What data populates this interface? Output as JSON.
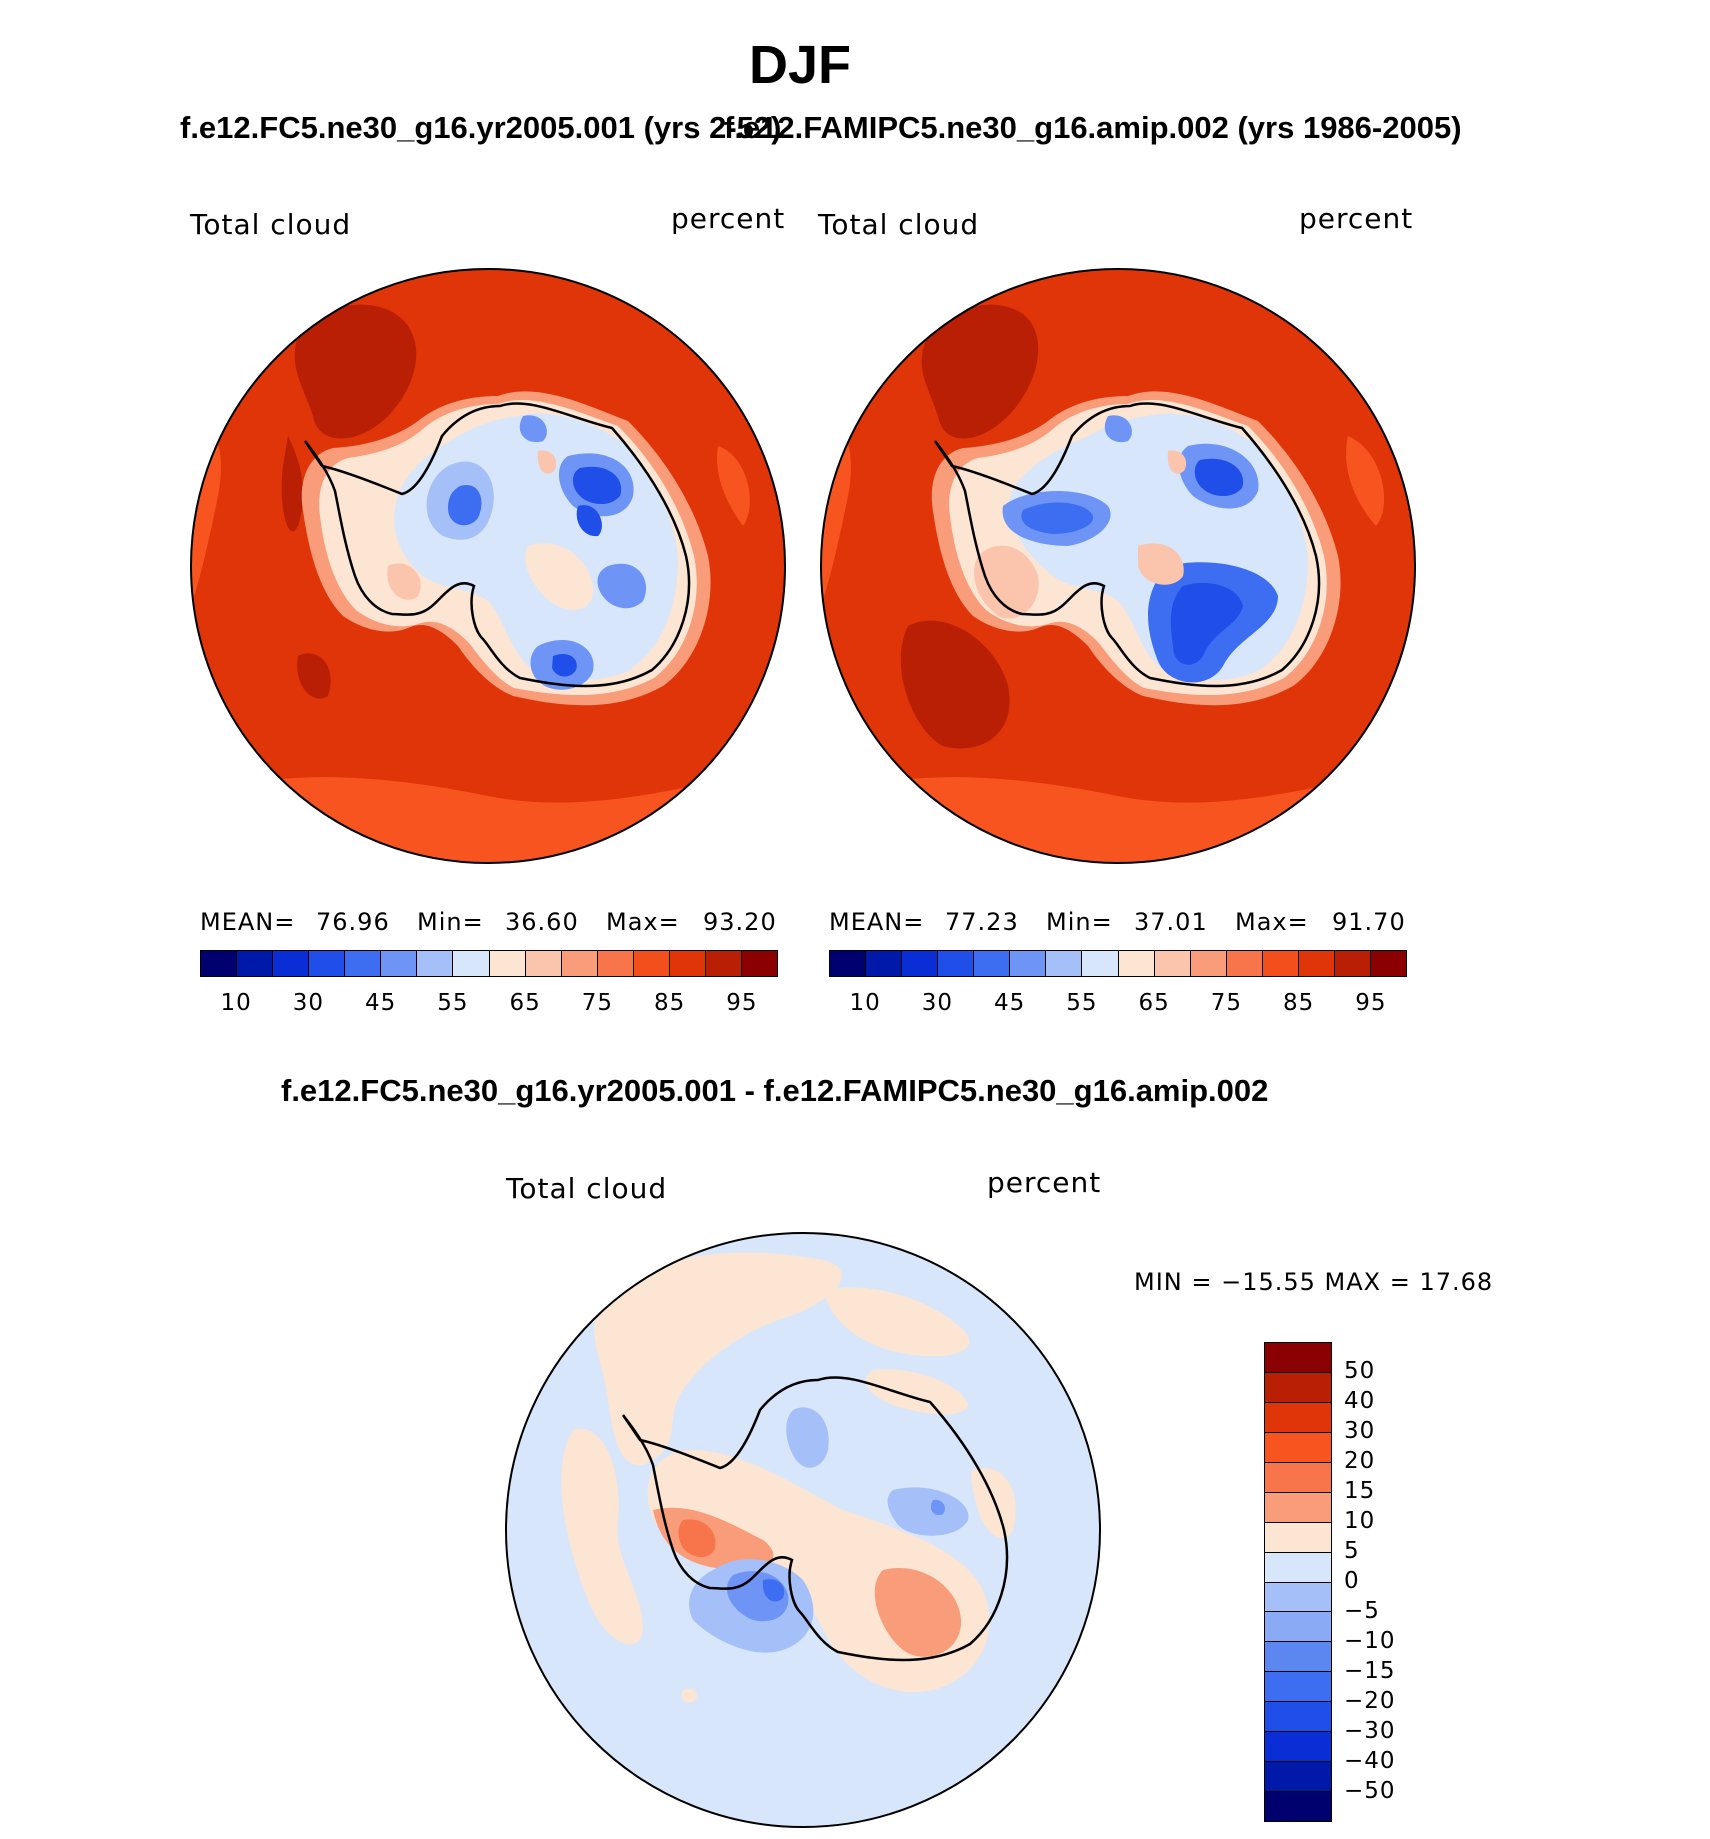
{
  "title": "DJF",
  "panels": [
    {
      "id": "test",
      "case_title": "f.e12.FC5.ne30_g16.yr2005.001 (yrs 2-52)",
      "variable_label": "Total cloud",
      "units_label": "percent",
      "stats": {
        "mean_label": "MEAN=",
        "mean": "76.96",
        "min_label": "Min=",
        "min": "36.60",
        "max_label": "Max=",
        "max": "93.20"
      }
    },
    {
      "id": "control",
      "case_title": "f.e12.FAMIPC5.ne30_g16.amip.002 (yrs 1986-2005)",
      "variable_label": "Total cloud",
      "units_label": "percent",
      "stats": {
        "mean_label": "MEAN=",
        "mean": "77.23",
        "min_label": "Min=",
        "min": "37.01",
        "max_label": "Max=",
        "max": "91.70"
      }
    }
  ],
  "difference": {
    "case_title": "f.e12.FC5.ne30_g16.yr2005.001 - f.e12.FAMIPC5.ne30_g16.amip.002",
    "variable_label": "Total cloud",
    "units_label": "percent",
    "minmax_text": "MIN = −15.55 MAX =   17.68"
  },
  "abs_colorbar": {
    "colors": [
      "#00006e",
      "#0019a8",
      "#0a2ed6",
      "#1f4fe8",
      "#3d6ef2",
      "#6e95f5",
      "#a5c0f8",
      "#d7e6fb",
      "#fde5d3",
      "#fac4ad",
      "#f89c7a",
      "#f8744a",
      "#f24f1d",
      "#df3508",
      "#b81f05",
      "#8b0000"
    ],
    "tick_labels": [
      "10",
      "30",
      "45",
      "55",
      "65",
      "75",
      "85",
      "95"
    ]
  },
  "diff_colorbar": {
    "colors": [
      "#8b0000",
      "#b81f05",
      "#df3508",
      "#f8541f",
      "#f8744a",
      "#f89c7a",
      "#fde5d3",
      "#d7e6fb",
      "#a5c0f8",
      "#8aaaf6",
      "#5c86f0",
      "#3d6ef2",
      "#1f4fe8",
      "#0a2ed6",
      "#0019a8",
      "#00006e"
    ],
    "tick_labels": [
      "50",
      "40",
      "30",
      "20",
      "15",
      "10",
      "5",
      "0",
      "−5",
      "−10",
      "−15",
      "−20",
      "−30",
      "−40",
      "−50"
    ]
  }
}
